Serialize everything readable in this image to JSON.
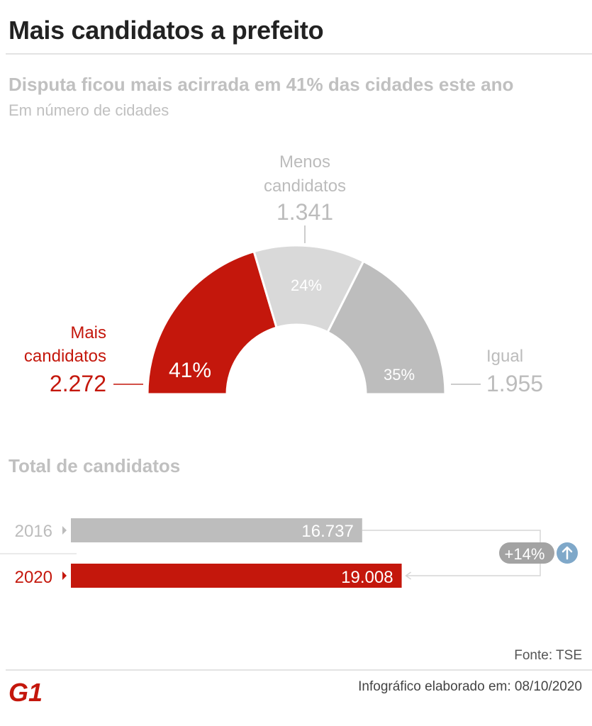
{
  "title": "Mais candidatos a prefeito",
  "subtitle": "Disputa ficou mais acirrada em 41% das cidades este ano",
  "unit_note": "Em número de cidades",
  "colors": {
    "red": "#c4170c",
    "light_gray": "#d9d9d9",
    "mid_gray": "#bdbdbd",
    "label_gray": "#bcbcbc",
    "badge_gray": "#a3a3a3",
    "arrow_blue": "#7fa8c9"
  },
  "chart_data": [
    {
      "type": "pie",
      "variant": "half-donut",
      "unit": "Em número de cidades",
      "series": [
        {
          "label_lines": [
            "Mais",
            "candidatos"
          ],
          "value_label": "2.272",
          "value": 2272,
          "pct_label": "41%",
          "color": "#c4170c",
          "label_color": "#c4170c"
        },
        {
          "label_lines": [
            "Menos",
            "candidatos"
          ],
          "value_label": "1.341",
          "value": 1341,
          "pct_label": "24%",
          "color": "#d9d9d9",
          "label_color": "#bcbcbc"
        },
        {
          "label_lines": [
            "Igual"
          ],
          "value_label": "1.955",
          "value": 1955,
          "pct_label": "35%",
          "color": "#bdbdbd",
          "label_color": "#bcbcbc"
        }
      ]
    },
    {
      "type": "bar",
      "orientation": "horizontal",
      "title": "Total de candidatos",
      "categories": [
        "2016",
        "2020"
      ],
      "values": [
        16737,
        19008
      ],
      "value_labels": [
        "16.737",
        "19.008"
      ],
      "colors": [
        "#bdbdbd",
        "#c4170c"
      ],
      "label_colors": [
        "#bcbcbc",
        "#c4170c"
      ],
      "change_label": "+14%"
    }
  ],
  "footer": {
    "source": "Fonte: TSE",
    "credit": "Infográfico elaborado em: 08/10/2020",
    "logo": "G1"
  }
}
